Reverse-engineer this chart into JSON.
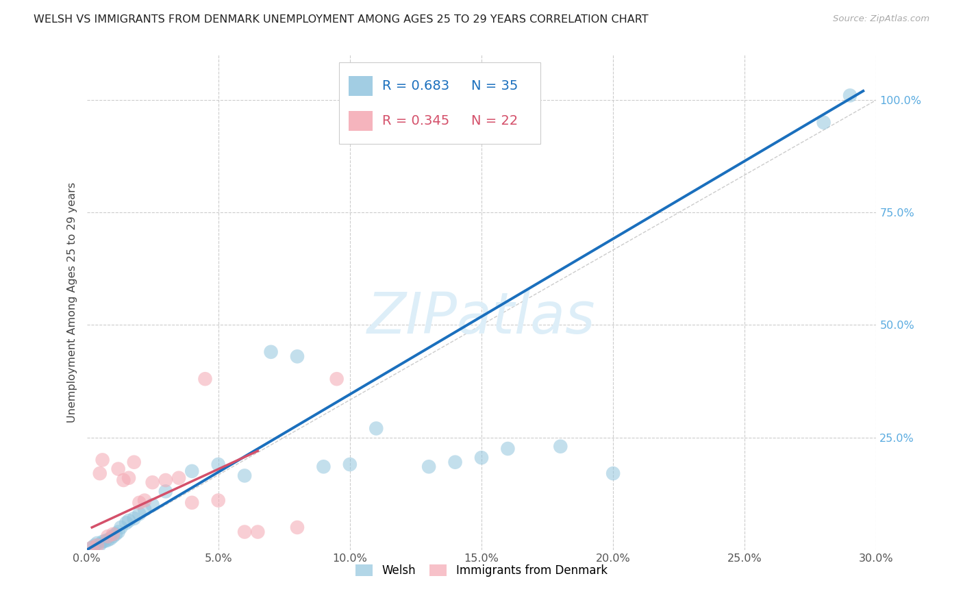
{
  "title": "WELSH VS IMMIGRANTS FROM DENMARK UNEMPLOYMENT AMONG AGES 25 TO 29 YEARS CORRELATION CHART",
  "source": "Source: ZipAtlas.com",
  "ylabel": "Unemployment Among Ages 25 to 29 years",
  "xlim": [
    0.0,
    0.3
  ],
  "ylim": [
    0.0,
    1.1
  ],
  "xtick_labels": [
    "0.0%",
    "5.0%",
    "10.0%",
    "15.0%",
    "20.0%",
    "25.0%",
    "30.0%"
  ],
  "xtick_vals": [
    0.0,
    0.05,
    0.1,
    0.15,
    0.2,
    0.25,
    0.3
  ],
  "ytick_labels": [
    "25.0%",
    "50.0%",
    "75.0%",
    "100.0%"
  ],
  "ytick_vals": [
    0.25,
    0.5,
    0.75,
    1.0
  ],
  "welsh_R": "0.683",
  "welsh_N": "35",
  "denmark_R": "0.345",
  "denmark_N": "22",
  "blue_scatter_color": "#92c5de",
  "pink_scatter_color": "#f4a7b2",
  "blue_line_color": "#1a6fbd",
  "pink_line_color": "#d4506a",
  "diag_line_color": "#cccccc",
  "grid_color": "#cccccc",
  "watermark_text": "ZIPatlas",
  "watermark_color": "#ddeef8",
  "legend_label1": "Welsh",
  "legend_label2": "Immigrants from Denmark",
  "welsh_x": [
    0.002,
    0.003,
    0.004,
    0.005,
    0.006,
    0.007,
    0.008,
    0.009,
    0.01,
    0.011,
    0.012,
    0.013,
    0.015,
    0.016,
    0.018,
    0.02,
    0.022,
    0.025,
    0.03,
    0.04,
    0.05,
    0.06,
    0.07,
    0.08,
    0.09,
    0.1,
    0.11,
    0.13,
    0.14,
    0.15,
    0.16,
    0.18,
    0.2,
    0.28,
    0.29
  ],
  "welsh_y": [
    0.005,
    0.01,
    0.015,
    0.012,
    0.018,
    0.02,
    0.022,
    0.025,
    0.03,
    0.035,
    0.04,
    0.05,
    0.06,
    0.065,
    0.07,
    0.08,
    0.09,
    0.1,
    0.13,
    0.175,
    0.19,
    0.165,
    0.44,
    0.43,
    0.185,
    0.19,
    0.27,
    0.185,
    0.195,
    0.205,
    0.225,
    0.23,
    0.17,
    0.95,
    1.01
  ],
  "denmark_x": [
    0.002,
    0.004,
    0.005,
    0.006,
    0.008,
    0.01,
    0.012,
    0.014,
    0.016,
    0.018,
    0.02,
    0.022,
    0.025,
    0.03,
    0.035,
    0.04,
    0.045,
    0.05,
    0.06,
    0.065,
    0.08,
    0.095
  ],
  "denmark_y": [
    0.005,
    0.01,
    0.17,
    0.2,
    0.03,
    0.035,
    0.18,
    0.155,
    0.16,
    0.195,
    0.105,
    0.11,
    0.15,
    0.155,
    0.16,
    0.105,
    0.38,
    0.11,
    0.04,
    0.04,
    0.05,
    0.38
  ],
  "welsh_line_x0": 0.0,
  "welsh_line_x1": 0.295,
  "welsh_line_y0": 0.0,
  "welsh_line_y1": 1.02,
  "denmark_line_x0": 0.002,
  "denmark_line_x1": 0.065,
  "denmark_line_y0": 0.05,
  "denmark_line_y1": 0.22
}
